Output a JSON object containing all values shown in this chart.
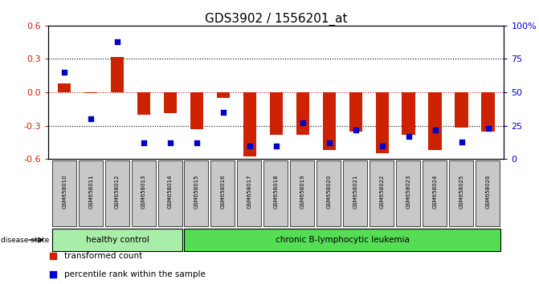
{
  "title": "GDS3902 / 1556201_at",
  "samples": [
    "GSM658010",
    "GSM658011",
    "GSM658012",
    "GSM658013",
    "GSM658014",
    "GSM658015",
    "GSM658016",
    "GSM658017",
    "GSM658018",
    "GSM658019",
    "GSM658020",
    "GSM658021",
    "GSM658022",
    "GSM658023",
    "GSM658024",
    "GSM658025",
    "GSM658026"
  ],
  "red_values": [
    0.08,
    -0.01,
    0.32,
    -0.2,
    -0.19,
    -0.33,
    -0.05,
    -0.58,
    -0.38,
    -0.38,
    -0.52,
    -0.35,
    -0.55,
    -0.38,
    -0.52,
    -0.32,
    -0.35
  ],
  "blue_pct": [
    65,
    30,
    88,
    12,
    12,
    12,
    35,
    10,
    10,
    27,
    12,
    22,
    10,
    17,
    22,
    13,
    23
  ],
  "group1_label": "healthy control",
  "group1_count": 5,
  "group2_label": "chronic B-lymphocytic leukemia",
  "group2_count": 12,
  "disease_state_label": "disease state",
  "ylim": [
    -0.6,
    0.6
  ],
  "yticks_left": [
    -0.6,
    -0.3,
    0.0,
    0.3,
    0.6
  ],
  "yticks_right": [
    0,
    25,
    50,
    75,
    100
  ],
  "ytick_labels_right": [
    "0",
    "25",
    "50",
    "75",
    "100%"
  ],
  "red_color": "#CC2200",
  "blue_color": "#0000CC",
  "green1": "#A8EEA8",
  "green2": "#55DD55",
  "bar_width": 0.5
}
